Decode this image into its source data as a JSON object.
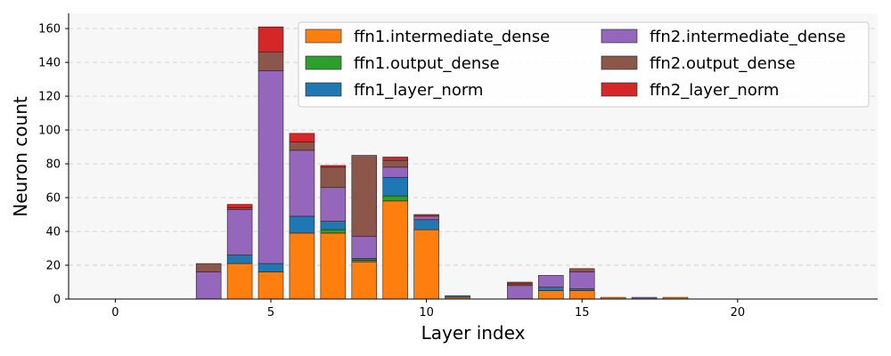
{
  "chart_data": {
    "type": "bar",
    "stacked": true,
    "xlabel": "Layer index",
    "ylabel": "Neuron count",
    "xlim": [
      -1.5,
      24.5
    ],
    "ylim": [
      0,
      169
    ],
    "x_ticks": [
      0,
      5,
      10,
      15,
      20
    ],
    "y_ticks": [
      0,
      20,
      40,
      60,
      80,
      100,
      120,
      140,
      160
    ],
    "grid": "horizontal-dashed",
    "legend_position": "top-right",
    "x": [
      0,
      1,
      2,
      3,
      4,
      5,
      6,
      7,
      8,
      9,
      10,
      11,
      12,
      13,
      14,
      15,
      16,
      17,
      18,
      19,
      20,
      21,
      22,
      23
    ],
    "series": [
      {
        "name": "ffn1.intermediate_dense",
        "color": "#ff7f0e",
        "values": [
          0,
          0,
          0,
          0,
          21,
          16,
          39,
          39,
          22,
          58,
          41,
          1,
          0,
          0,
          5,
          5,
          1,
          0,
          1,
          0,
          0,
          0,
          0,
          0
        ]
      },
      {
        "name": "ffn1.output_dense",
        "color": "#2ca02c",
        "values": [
          0,
          0,
          0,
          0,
          0,
          0,
          0,
          2,
          1,
          3,
          0,
          0,
          0,
          0,
          0,
          0,
          0,
          0,
          0,
          0,
          0,
          0,
          0,
          0
        ]
      },
      {
        "name": "ffn1_layer_norm",
        "color": "#1f77b4",
        "values": [
          0,
          0,
          0,
          0,
          5,
          5,
          10,
          5,
          1,
          11,
          6,
          1,
          0,
          0,
          2,
          1,
          0,
          0,
          0,
          0,
          0,
          0,
          0,
          0
        ]
      },
      {
        "name": "ffn2.intermediate_dense",
        "color": "#9467bd",
        "values": [
          0,
          0,
          0,
          16,
          27,
          114,
          39,
          20,
          13,
          6,
          2,
          0,
          0,
          8,
          7,
          10,
          0,
          1,
          0,
          0,
          0,
          0,
          0,
          0
        ]
      },
      {
        "name": "ffn2.output_dense",
        "color": "#8c564b",
        "values": [
          0,
          0,
          0,
          5,
          1,
          11,
          5,
          12,
          48,
          4,
          0,
          0,
          0,
          1,
          0,
          2,
          0,
          0,
          0,
          0,
          0,
          0,
          0,
          0
        ]
      },
      {
        "name": "ffn2_layer_norm",
        "color": "#d62728",
        "values": [
          0,
          0,
          0,
          0,
          2,
          15,
          5,
          1,
          0,
          2,
          1,
          0,
          0,
          1,
          0,
          0,
          0,
          0,
          0,
          0,
          0,
          0,
          0,
          0
        ]
      }
    ]
  }
}
